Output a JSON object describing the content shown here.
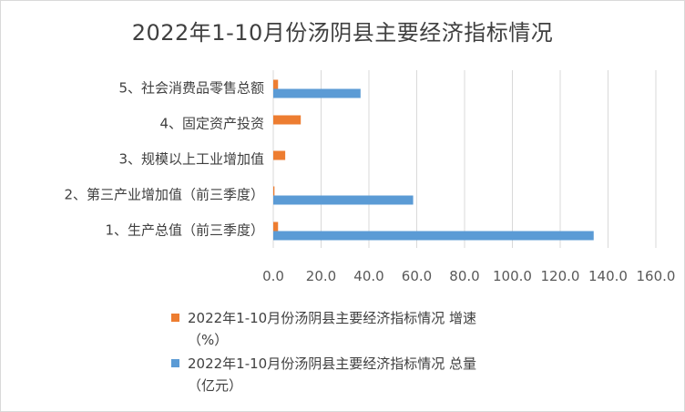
{
  "chart_data": {
    "type": "bar",
    "orientation": "horizontal",
    "title": "2022年1-10月份汤阴县主要经济指标情况",
    "categories": [
      "1、生产总值（前三季度）",
      "2、第三产业增加值（前三季度）",
      "3、规模以上工业增加值",
      "4、固定资产投资",
      "5、社会消费品零售总额"
    ],
    "series": [
      {
        "name": "2022年1-10月份汤阴县主要经济指标情况 增速（%）",
        "name_line1": "2022年1-10月份汤阴县主要经济指标情况 增速",
        "name_line2": "（%）",
        "color": "#ed7d31",
        "values": [
          2.0,
          0.5,
          5.0,
          11.5,
          2.0
        ]
      },
      {
        "name": "2022年1-10月份汤阴县主要经济指标情况 总量（亿元）",
        "name_line1": "2022年1-10月份汤阴县主要经济指标情况 总量",
        "name_line2": "（亿元）",
        "color": "#5b9bd5",
        "values": [
          134.0,
          58.5,
          null,
          null,
          36.5
        ]
      }
    ],
    "xlim": [
      0,
      160
    ],
    "x_ticks": [
      "0.0",
      "20.0",
      "40.0",
      "60.0",
      "80.0",
      "100.0",
      "120.0",
      "140.0",
      "160.0"
    ],
    "x_tick_values": [
      0,
      20,
      40,
      60,
      80,
      100,
      120,
      140,
      160
    ],
    "grid": true,
    "legend_position": "bottom-left",
    "gridline_color": "#d9d9d9"
  }
}
